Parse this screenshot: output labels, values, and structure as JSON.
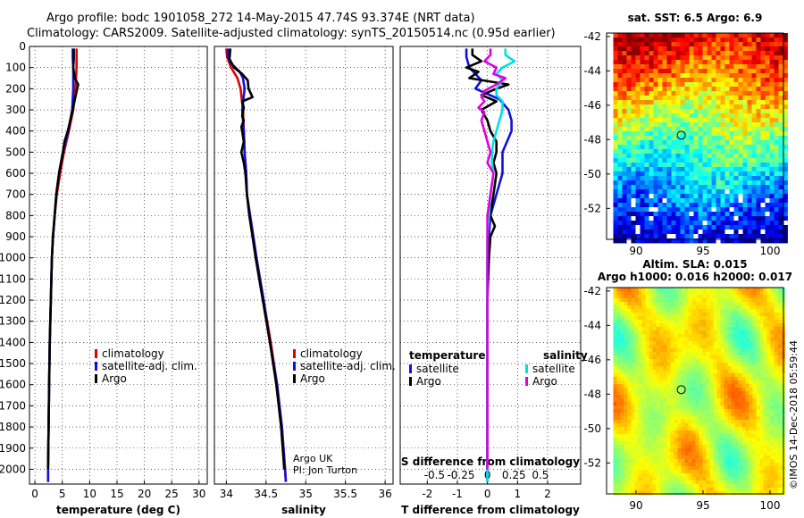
{
  "header": {
    "line1": "Argo profile: bodc 1901058_272 14-May-2015 47.74S 93.374E (NRT data)",
    "line2": "Climatology: CARS2009. Satellite-adjusted climatology: synTS_20150514.nc (0.95d earlier)"
  },
  "colors": {
    "climatology": "#e00000",
    "satellite": "#1010e0",
    "argo": "#000000",
    "sat_salinity": "#00e0e0",
    "argo_salinity": "#e000e0"
  },
  "chart_data": [
    {
      "id": "temperature",
      "type": "line",
      "xlabel": "temperature (deg C)",
      "ylabel": "",
      "xlim": [
        -1,
        31.5
      ],
      "ylim": [
        2070,
        0
      ],
      "xticks": [
        0,
        5,
        10,
        15,
        20,
        25,
        30
      ],
      "xtick_labels": [
        "0",
        "5",
        "10",
        "15",
        "20",
        "25",
        "30"
      ],
      "yticks": [
        0,
        100,
        200,
        300,
        400,
        500,
        600,
        700,
        800,
        900,
        1000,
        1100,
        1200,
        1300,
        1400,
        1500,
        1600,
        1700,
        1800,
        1900,
        2000
      ],
      "ytick_labels": [
        "0",
        "100",
        "200",
        "300",
        "400",
        "500",
        "600",
        "700",
        "800",
        "900",
        "1000",
        "1100",
        "1200",
        "1300",
        "1400",
        "1500",
        "1600",
        "1700",
        "1800",
        "1900",
        "2000"
      ],
      "legend": {
        "position": "bottom-right",
        "entries": [
          "climatology",
          "satellite-adj. clim.",
          "Argo"
        ]
      },
      "series": [
        {
          "name": "climatology",
          "color": "#e00000",
          "y": [
            10,
            50,
            100,
            200,
            300,
            400,
            500,
            600,
            700,
            800,
            900,
            1000,
            1200,
            1400,
            1600,
            1800,
            2000,
            2060
          ],
          "x": [
            7.6,
            7.6,
            7.6,
            7.4,
            7.0,
            6.2,
            5.3,
            4.6,
            4.0,
            3.6,
            3.3,
            3.1,
            2.9,
            2.7,
            2.6,
            2.5,
            2.4,
            2.4
          ]
        },
        {
          "name": "satellite-adj. clim.",
          "color": "#1010e0",
          "y": [
            10,
            50,
            100,
            200,
            300,
            400,
            500,
            600,
            700,
            800,
            900,
            1000,
            1200,
            1400,
            1600,
            1800,
            2000,
            2060
          ],
          "x": [
            6.9,
            6.9,
            7.0,
            7.0,
            6.8,
            6.1,
            5.1,
            4.4,
            3.9,
            3.6,
            3.3,
            3.1,
            2.9,
            2.7,
            2.6,
            2.5,
            2.4,
            2.4
          ]
        },
        {
          "name": "Argo",
          "color": "#000000",
          "y": [
            10,
            60,
            100,
            150,
            180,
            250,
            300,
            400,
            450,
            500,
            600,
            700,
            800,
            900,
            1000,
            1200,
            1400,
            1600,
            1800,
            2000
          ],
          "x": [
            7.1,
            7.1,
            7.0,
            7.3,
            7.9,
            7.3,
            6.9,
            6.0,
            5.4,
            5.1,
            4.4,
            3.9,
            3.6,
            3.3,
            3.1,
            2.9,
            2.7,
            2.6,
            2.5,
            2.4
          ]
        }
      ]
    },
    {
      "id": "salinity",
      "type": "line",
      "xlabel": "salinity",
      "xlim": [
        33.85,
        36.1
      ],
      "ylim": [
        2070,
        0
      ],
      "xticks": [
        34,
        34.5,
        35,
        35.5,
        36
      ],
      "xtick_labels": [
        "34",
        "34.5",
        "35",
        "35.5",
        "36"
      ],
      "legend": {
        "position": "bottom-right",
        "entries": [
          "climatology",
          "satellite-adj. clim.",
          "Argo"
        ]
      },
      "annotation": [
        "Argo UK",
        "PI: Jon Turton"
      ],
      "series": [
        {
          "name": "climatology",
          "color": "#e00000",
          "y": [
            10,
            50,
            100,
            150,
            200,
            300,
            400,
            500,
            600,
            700,
            800,
            900,
            1000,
            1200,
            1400,
            1600,
            1800,
            2000,
            2060
          ],
          "x": [
            34.0,
            34.01,
            34.06,
            34.14,
            34.18,
            34.21,
            34.22,
            34.23,
            34.25,
            34.26,
            34.3,
            34.34,
            34.38,
            34.47,
            34.56,
            34.64,
            34.7,
            34.74,
            34.75
          ]
        },
        {
          "name": "satellite-adj. clim.",
          "color": "#1010e0",
          "y": [
            10,
            50,
            80,
            120,
            150,
            200,
            300,
            400,
            500,
            600,
            700,
            800,
            900,
            1000,
            1200,
            1400,
            1600,
            1800,
            2000,
            2060
          ],
          "x": [
            34.02,
            34.02,
            34.06,
            34.17,
            34.21,
            34.23,
            34.2,
            34.22,
            34.23,
            34.25,
            34.26,
            34.3,
            34.34,
            34.38,
            34.47,
            34.55,
            34.64,
            34.7,
            34.74,
            34.75
          ]
        },
        {
          "name": "Argo",
          "color": "#000000",
          "y": [
            10,
            60,
            100,
            130,
            160,
            200,
            240,
            260,
            290,
            330,
            350,
            380,
            400,
            450,
            500,
            550,
            600,
            700,
            800,
            900,
            1000,
            1200,
            1400,
            1600,
            1800,
            2000
          ],
          "x": [
            34.05,
            34.04,
            34.1,
            34.2,
            34.27,
            34.28,
            34.33,
            34.2,
            34.22,
            34.2,
            34.22,
            34.19,
            34.2,
            34.22,
            34.19,
            34.22,
            34.24,
            34.26,
            34.29,
            34.33,
            34.37,
            34.46,
            34.55,
            34.63,
            34.69,
            34.73
          ]
        }
      ]
    },
    {
      "id": "difference",
      "type": "line",
      "xlabel": "T difference from climatology",
      "xlabel2": "S difference from climatology",
      "xlim": [
        -2.9,
        3.1
      ],
      "ylim": [
        2070,
        0
      ],
      "xticks": [
        -2,
        -1,
        0,
        1,
        2
      ],
      "xtick_labels": [
        "-2",
        "-1",
        "0",
        "1",
        "2"
      ],
      "xticks2": [
        -1.76,
        -0.88,
        0,
        0.88,
        1.76
      ],
      "xtick_labels2": [
        "-0.5",
        "-0.25",
        "0",
        "0.25",
        "0.5"
      ],
      "legend": {
        "position": "bottom",
        "groups": [
          {
            "title": "temperature",
            "entries": [
              "satellite",
              "Argo"
            ]
          },
          {
            "title": "salinity",
            "entries": [
              "satellite",
              "Argo"
            ]
          }
        ]
      },
      "series": [
        {
          "name": "temperature satellite",
          "color": "#1010e0",
          "y": [
            10,
            50,
            100,
            130,
            160,
            200,
            250,
            300,
            350,
            400,
            500,
            600,
            700,
            800,
            900,
            1000,
            1200,
            1500,
            1800,
            2060
          ],
          "x": [
            -0.7,
            -0.7,
            -0.6,
            -0.4,
            -0.2,
            -0.4,
            0.4,
            0.7,
            0.8,
            0.8,
            0.5,
            0.5,
            0.3,
            0.1,
            0.05,
            0.0,
            0.0,
            0.0,
            0.0,
            0.0
          ]
        },
        {
          "name": "temperature Argo",
          "color": "#000000",
          "y": [
            10,
            40,
            70,
            100,
            120,
            150,
            180,
            200,
            230,
            260,
            300,
            350,
            400,
            450,
            500,
            550,
            600,
            700,
            800,
            850,
            900,
            1000,
            1200,
            1500,
            1800,
            2000
          ],
          "x": [
            -0.5,
            -0.5,
            -0.2,
            -0.7,
            -0.3,
            -0.6,
            0.7,
            0.3,
            -0.2,
            0.3,
            -0.2,
            0.0,
            0.1,
            0.3,
            0.3,
            0.2,
            0.3,
            0.2,
            0.1,
            0.25,
            0.1,
            0.05,
            0.0,
            0.0,
            0.0,
            0.0
          ]
        },
        {
          "name": "salinity satellite",
          "color": "#00e0e0",
          "y": [
            10,
            40,
            70,
            100,
            130,
            160,
            200,
            230,
            260,
            300,
            350,
            400,
            450,
            500,
            550,
            600,
            700,
            800,
            900,
            1000,
            1200,
            1500,
            1800,
            2060
          ],
          "x": [
            0.6,
            0.6,
            0.9,
            0.5,
            0.3,
            0.5,
            0.3,
            0.3,
            0.5,
            0.5,
            0.4,
            0.3,
            0.2,
            0.15,
            0.15,
            0.2,
            0.1,
            0.05,
            0.0,
            0.0,
            0.0,
            0.0,
            0.0,
            0.0
          ]
        },
        {
          "name": "salinity Argo",
          "color": "#e000e0",
          "y": [
            10,
            40,
            70,
            100,
            130,
            150,
            180,
            210,
            240,
            260,
            290,
            310,
            350,
            400,
            450,
            500,
            550,
            600,
            700,
            800,
            900,
            1000,
            1200,
            1500,
            1800,
            2000
          ],
          "x": [
            0.1,
            0.1,
            -0.1,
            0.3,
            0.2,
            0.6,
            0.3,
            -0.1,
            -0.2,
            -0.1,
            -0.3,
            -0.1,
            -0.2,
            -0.1,
            0.0,
            0.1,
            0.0,
            0.2,
            0.1,
            0.0,
            0.0,
            0.0,
            0.0,
            0.0,
            0.0,
            0.0
          ]
        }
      ]
    },
    {
      "id": "sst-map",
      "type": "heatmap",
      "title": "sat. SST: 6.5 Argo: 6.9",
      "xlim": [
        87.8,
        101
      ],
      "ylim": [
        -53.8,
        -41.8
      ],
      "xticks": [
        90,
        95,
        100
      ],
      "xtick_labels": [
        "90",
        "95",
        "100"
      ],
      "yticks": [
        -42,
        -44,
        -46,
        -48,
        -50,
        -52
      ],
      "ytick_labels": [
        "-42",
        "-44",
        "-46",
        "-48",
        "-50",
        "-52"
      ],
      "data_lon_range": [
        88.3,
        101
      ],
      "argo_position": {
        "lon": 93.374,
        "lat": -47.74
      }
    },
    {
      "id": "sla-map",
      "type": "heatmap",
      "title": "Altim. SLA: 0.015",
      "subtitle": "Argo h1000: 0.016 h2000: 0.017",
      "xlim": [
        87.8,
        101
      ],
      "ylim": [
        -53.8,
        -41.8
      ],
      "xticks": [
        90,
        95,
        100
      ],
      "xtick_labels": [
        "90",
        "95",
        "100"
      ],
      "yticks": [
        -42,
        -44,
        -46,
        -48,
        -50,
        -52
      ],
      "ytick_labels": [
        "-42",
        "-44",
        "-46",
        "-48",
        "-50",
        "-52"
      ],
      "data_lon_range": [
        88.3,
        101
      ],
      "argo_position": {
        "lon": 93.374,
        "lat": -47.74
      }
    }
  ],
  "footer": {
    "stamp": "©IMOS 14-Dec-2018 05:59:44"
  }
}
